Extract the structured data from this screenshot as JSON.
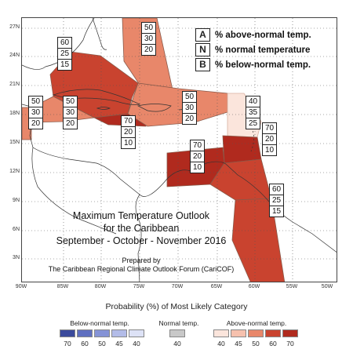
{
  "map": {
    "latitude_labels": [
      "27N",
      "24N",
      "21N",
      "18N",
      "15N",
      "12N",
      "9N",
      "6N",
      "3N"
    ],
    "longitude_labels": [
      "90W",
      "85W",
      "80W",
      "75W",
      "70W",
      "65W",
      "60W",
      "55W",
      "50W"
    ],
    "region_probabilities": [
      {
        "region": "bahamas",
        "A": "50",
        "N": "30",
        "B": "20",
        "category": "above-normal",
        "color": "#e8876a"
      },
      {
        "region": "cuba",
        "A": "60",
        "N": "25",
        "B": "15",
        "category": "above-normal",
        "color": "#c9432f"
      },
      {
        "region": "belize",
        "A": "50",
        "N": "30",
        "B": "20",
        "category": "above-normal",
        "color": "#e8876a"
      },
      {
        "region": "jamaica-cayman",
        "A": "50",
        "N": "30",
        "B": "20",
        "category": "above-normal",
        "color": "#e8876a"
      },
      {
        "region": "caribbean-south-of-jamaica",
        "A": "70",
        "N": "20",
        "B": "10",
        "category": "above-normal",
        "color": "#b02a1e"
      },
      {
        "region": "hispaniola-puerto-rico",
        "A": "50",
        "N": "30",
        "B": "20",
        "category": "above-normal",
        "color": "#e8876a"
      },
      {
        "region": "northern-leeward-islands",
        "A": "40",
        "N": "35",
        "B": "25",
        "category": "above-normal",
        "color": "#fbe5dc"
      },
      {
        "region": "windward-islands",
        "A": "70",
        "N": "20",
        "B": "10",
        "category": "above-normal",
        "color": "#b02a1e"
      },
      {
        "region": "abc-islands-south-caribbean",
        "A": "70",
        "N": "20",
        "B": "10",
        "category": "above-normal",
        "color": "#b02a1e"
      },
      {
        "region": "trinidad-guianas",
        "A": "60",
        "N": "25",
        "B": "15",
        "category": "above-normal",
        "color": "#c9432f"
      }
    ]
  },
  "key": [
    {
      "letter": "A",
      "text": "% above-normal temp."
    },
    {
      "letter": "N",
      "text": "% normal temperature"
    },
    {
      "letter": "B",
      "text": "% below-normal temp."
    }
  ],
  "title": {
    "line1": "Maximum Temperature Outlook",
    "line2": "for the Caribbean",
    "line3": "September - October - November 2016",
    "prepared_by": "Prepared by",
    "forum": "The Caribbean Regional Climate Outlook Forum (CariCOF)"
  },
  "legend": {
    "title": "Probability (%) of Most Likely Category",
    "below": {
      "label": "Below-normal temp.",
      "swatches": [
        {
          "value": "70",
          "color": "#3b4a9c"
        },
        {
          "value": "60",
          "color": "#5f6fc0"
        },
        {
          "value": "50",
          "color": "#8593d6"
        },
        {
          "value": "45",
          "color": "#b3bce8"
        },
        {
          "value": "40",
          "color": "#dde2f6"
        }
      ]
    },
    "normal": {
      "label": "Normal temp.",
      "swatches": [
        {
          "value": "40",
          "color": "#c8c8c8"
        }
      ]
    },
    "above": {
      "label": "Above-normal temp.",
      "swatches": [
        {
          "value": "40",
          "color": "#fbe5dc"
        },
        {
          "value": "45",
          "color": "#f6c1ae"
        },
        {
          "value": "50",
          "color": "#e8876a"
        },
        {
          "value": "60",
          "color": "#c9432f"
        },
        {
          "value": "70",
          "color": "#b02a1e"
        }
      ]
    }
  }
}
